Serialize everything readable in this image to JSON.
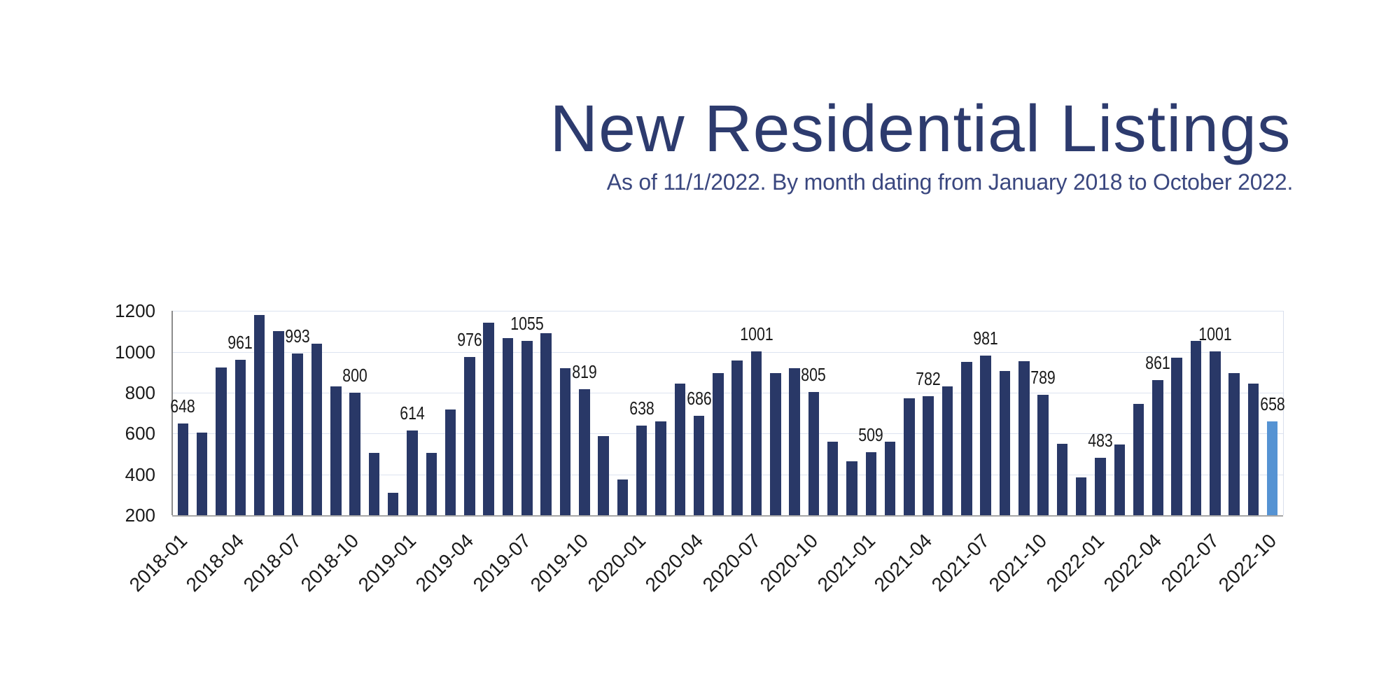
{
  "title": "New Residential Listings",
  "subtitle": "As of 11/1/2022. By month dating from January 2018 to October 2022.",
  "chart_data": {
    "type": "bar",
    "categories": [
      "2018-01",
      "2018-02",
      "2018-03",
      "2018-04",
      "2018-05",
      "2018-06",
      "2018-07",
      "2018-08",
      "2018-09",
      "2018-10",
      "2018-11",
      "2018-12",
      "2019-01",
      "2019-02",
      "2019-03",
      "2019-04",
      "2019-05",
      "2019-06",
      "2019-07",
      "2019-08",
      "2019-09",
      "2019-10",
      "2019-11",
      "2019-12",
      "2020-01",
      "2020-02",
      "2020-03",
      "2020-04",
      "2020-05",
      "2020-06",
      "2020-07",
      "2020-08",
      "2020-09",
      "2020-10",
      "2020-11",
      "2020-12",
      "2021-01",
      "2021-02",
      "2021-03",
      "2021-04",
      "2021-05",
      "2021-06",
      "2021-07",
      "2021-08",
      "2021-09",
      "2021-10",
      "2021-11",
      "2021-12",
      "2022-01",
      "2022-02",
      "2022-03",
      "2022-04",
      "2022-05",
      "2022-06",
      "2022-07",
      "2022-08",
      "2022-09",
      "2022-10"
    ],
    "values": [
      648,
      605,
      925,
      961,
      1180,
      1103,
      993,
      1040,
      832,
      800,
      505,
      310,
      614,
      505,
      718,
      976,
      1143,
      1069,
      1055,
      1091,
      920,
      819,
      588,
      375,
      638,
      660,
      845,
      686,
      895,
      958,
      1001,
      895,
      920,
      805,
      560,
      465,
      509,
      560,
      772,
      782,
      830,
      952,
      981,
      905,
      955,
      789,
      550,
      385,
      483,
      548,
      745,
      861,
      970,
      1055,
      1001,
      895,
      845,
      658
    ],
    "tick_label_every": 3,
    "value_label_every": 3,
    "y_ticks": [
      1200,
      1000,
      800,
      600,
      400,
      200
    ],
    "ylim": [
      200,
      1200
    ],
    "grid": "horizontal",
    "highlight_last_bar": true,
    "colors": {
      "bar": "#293867",
      "highlight_bar": "#5593D3",
      "gridline": "#DCE3F0",
      "axis": "#A6A6A6",
      "axis_left": "#8C8C8C",
      "axis_right": "#D9DFEC",
      "tick_text": "#1A1A1A",
      "title": "#2D3B6E",
      "subtitle": "#3A477F"
    }
  }
}
